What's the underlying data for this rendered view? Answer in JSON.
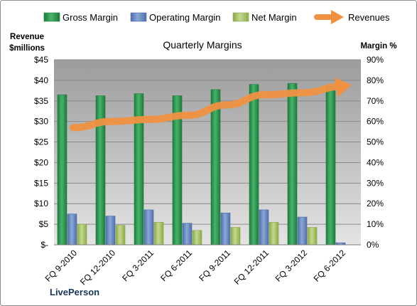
{
  "chart_data": {
    "type": "bar",
    "title": "Quarterly Margins",
    "categories": [
      "FQ 9-2010",
      "FQ 12-2010",
      "FQ 3-2011",
      "FQ 6-2011",
      "FQ 9-2011",
      "FQ 12-2011",
      "FQ 3-2012",
      "FQ 6-2012"
    ],
    "series": [
      {
        "name": "Gross Margin",
        "axis": "right",
        "unit": "%",
        "values": [
          73,
          72.5,
          73.5,
          72.5,
          75.5,
          78,
          78.5,
          77.5
        ]
      },
      {
        "name": "Operating Margin",
        "axis": "right",
        "unit": "%",
        "values": [
          15,
          14,
          17,
          10.5,
          15.5,
          17,
          13.5,
          1
        ]
      },
      {
        "name": "Net Margin",
        "axis": "right",
        "unit": "%",
        "values": [
          10,
          9.5,
          11,
          7,
          8.5,
          11,
          8.5,
          0
        ]
      },
      {
        "name": "Revenues",
        "axis": "left",
        "type": "line",
        "unit": "$M",
        "values": [
          28.5,
          30,
          30.5,
          31.5,
          34,
          36.5,
          37,
          38.5
        ]
      }
    ],
    "left_axis": {
      "label_line1": "Revenue",
      "label_line2": "$millions",
      "ylim": [
        0,
        45
      ],
      "ticks": [
        "$-",
        "$5",
        "$10",
        "$15",
        "$20",
        "$25",
        "$30",
        "$35",
        "$40",
        "$45"
      ]
    },
    "right_axis": {
      "label": "Margin %",
      "ylim": [
        0,
        90
      ],
      "ticks": [
        "0%",
        "10%",
        "20%",
        "30%",
        "40%",
        "50%",
        "60%",
        "70%",
        "80%",
        "90%"
      ]
    },
    "legend": {
      "position": "top"
    },
    "grid": true
  },
  "brand": "LivePerson",
  "colors": {
    "gross": "#1e7a3c",
    "gross_light": "#47b46a",
    "operating": "#4f6fa8",
    "operating_light": "#89a7d8",
    "net": "#8caa4a",
    "net_light": "#c4d98e",
    "revenue": "#f09142",
    "plot_top": "#9c9c9c",
    "plot_bottom": "#e4e4e4",
    "brand": "#17375e"
  }
}
